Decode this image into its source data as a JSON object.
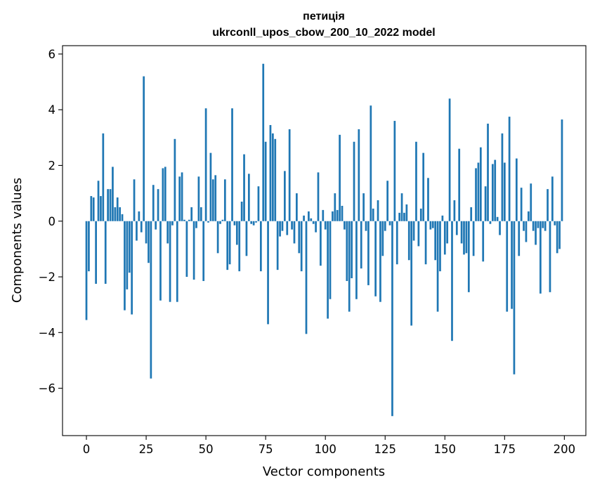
{
  "chart_data": {
    "type": "bar",
    "title_line1": "петиція",
    "title_line2": "ukrconll_upos_cbow_200_10_2022 model",
    "xlabel": "Vector components",
    "ylabel": "Components values",
    "xlim": [
      -10,
      209
    ],
    "ylim": [
      -7.7,
      6.3
    ],
    "xticks": [
      0,
      25,
      50,
      75,
      100,
      125,
      150,
      175,
      200
    ],
    "xtick_labels": [
      "0",
      "25",
      "50",
      "75",
      "100",
      "125",
      "150",
      "175",
      "200"
    ],
    "yticks": [
      -6,
      -4,
      -2,
      0,
      2,
      4,
      6
    ],
    "ytick_labels": [
      "−6",
      "−4",
      "−2",
      "0",
      "2",
      "4",
      "6"
    ],
    "grid": false,
    "bar_color": "#1f77b4",
    "series": [
      {
        "values": [
          -3.55,
          -1.8,
          0.9,
          0.85,
          -2.25,
          1.45,
          0.9,
          3.15,
          -2.25,
          1.15,
          1.15,
          1.95,
          0.5,
          0.85,
          0.5,
          0.25,
          -3.2,
          -2.45,
          -1.85,
          -3.35,
          1.5,
          -0.7,
          0.35,
          -0.4,
          5.2,
          -0.8,
          -1.5,
          -5.65,
          1.3,
          -0.3,
          1.15,
          -2.85,
          1.9,
          1.95,
          -0.8,
          -2.9,
          -0.15,
          2.95,
          -2.9,
          1.6,
          1.75,
          0.05,
          -2.0,
          0.05,
          0.5,
          -2.1,
          -0.25,
          1.6,
          0.5,
          -2.15,
          4.05,
          -0.05,
          2.45,
          1.5,
          1.65,
          -1.15,
          -0.1,
          0.05,
          1.5,
          -1.75,
          -1.55,
          4.05,
          -0.15,
          -0.85,
          -1.8,
          0.7,
          2.4,
          -1.25,
          1.7,
          -0.1,
          -0.15,
          -0.05,
          1.25,
          -1.8,
          5.65,
          2.85,
          -3.7,
          3.45,
          3.15,
          2.95,
          -1.75,
          -0.55,
          -0.35,
          1.8,
          -0.5,
          3.3,
          -0.3,
          -0.8,
          1.0,
          -1.15,
          -1.8,
          0.2,
          -4.05,
          0.35,
          0.1,
          -0.1,
          -0.4,
          1.75,
          -1.6,
          0.4,
          -0.3,
          -3.5,
          -2.8,
          0.35,
          1.0,
          0.4,
          3.1,
          0.55,
          -0.3,
          -2.15,
          -3.25,
          -2.05,
          2.85,
          -2.8,
          3.3,
          -1.7,
          1.0,
          -0.35,
          -2.3,
          4.15,
          0.45,
          -2.7,
          0.75,
          -2.9,
          -1.25,
          -0.35,
          1.45,
          -0.15,
          -7.0,
          3.6,
          -1.55,
          0.3,
          1.0,
          0.3,
          0.6,
          -1.4,
          -3.75,
          -0.7,
          2.85,
          -0.9,
          0.45,
          2.45,
          -1.55,
          1.55,
          -0.3,
          -0.25,
          -1.4,
          -3.25,
          -1.8,
          0.2,
          -1.2,
          -0.8,
          4.4,
          -4.3,
          0.75,
          -0.5,
          2.6,
          -0.8,
          -1.2,
          -1.15,
          -2.55,
          0.5,
          -1.25,
          1.9,
          2.1,
          2.65,
          -1.45,
          1.25,
          3.5,
          -0.1,
          2.05,
          2.2,
          0.15,
          -0.5,
          3.15,
          2.1,
          -3.25,
          3.75,
          -3.15,
          -5.5,
          2.25,
          -1.25,
          1.2,
          -0.35,
          -0.75,
          0.35,
          1.35,
          -0.35,
          -0.85,
          -0.25,
          -2.6,
          -0.25,
          -0.35,
          1.15,
          -2.55,
          1.6,
          -0.15,
          -1.15,
          -1.0,
          3.65
        ]
      }
    ]
  }
}
